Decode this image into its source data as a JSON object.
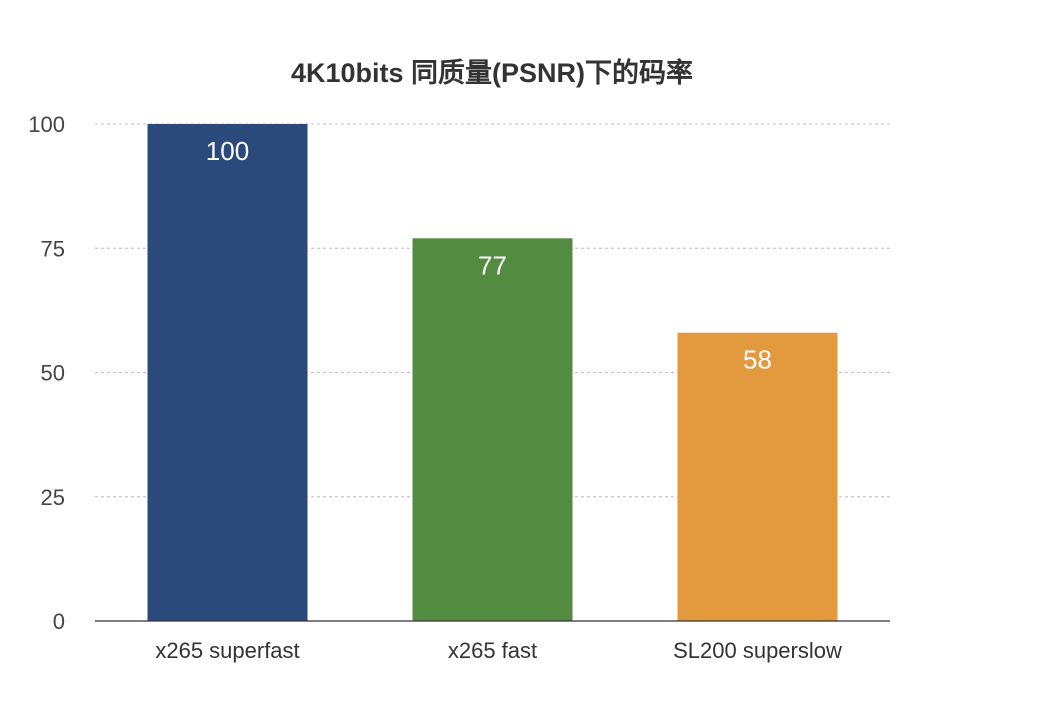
{
  "chart_data": {
    "type": "bar",
    "title": "4K10bits 同质量(PSNR)下的码率",
    "categories": [
      "x265 superfast",
      "x265 fast",
      "SL200 superslow"
    ],
    "values": [
      100,
      77,
      58
    ],
    "data_labels": [
      "100",
      "77",
      "58"
    ],
    "colors": [
      "#2a4a7b",
      "#538c40",
      "#e39a3e"
    ],
    "ylim": [
      0,
      100
    ],
    "yticks": [
      0,
      25,
      50,
      75,
      100
    ],
    "grid": true,
    "legend": "none"
  }
}
